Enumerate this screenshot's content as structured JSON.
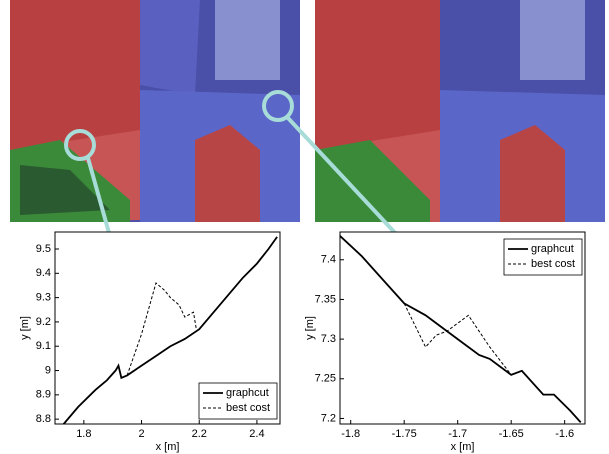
{
  "chart_data": [
    {
      "type": "line",
      "xlabel": "x [m]",
      "ylabel": "y [m]",
      "xlim": [
        1.7,
        2.48
      ],
      "ylim": [
        8.78,
        9.57
      ],
      "xticks": [
        1.8,
        2,
        2.2,
        2.4
      ],
      "yticks": [
        8.8,
        8.9,
        9,
        9.1,
        9.2,
        9.3,
        9.4,
        9.5
      ],
      "legend": "lower right",
      "series": [
        {
          "name": "graphcut",
          "color": "#000000",
          "dash": false,
          "x": [
            1.73,
            1.78,
            1.84,
            1.88,
            1.91,
            1.92,
            1.93,
            1.95,
            2.0,
            2.05,
            2.1,
            2.15,
            2.2,
            2.25,
            2.3,
            2.35,
            2.4,
            2.44,
            2.47
          ],
          "values": [
            8.78,
            8.85,
            8.92,
            8.96,
            9.0,
            9.02,
            8.97,
            8.98,
            9.02,
            9.06,
            9.1,
            9.13,
            9.17,
            9.24,
            9.31,
            9.38,
            9.44,
            9.5,
            9.55
          ]
        },
        {
          "name": "best cost",
          "color": "#000000",
          "dash": true,
          "x": [
            1.95,
            2.0,
            2.05,
            2.08,
            2.1,
            2.13,
            2.15,
            2.18,
            2.19
          ],
          "values": [
            8.98,
            9.15,
            9.36,
            9.33,
            9.3,
            9.27,
            9.22,
            9.24,
            9.17
          ]
        }
      ]
    },
    {
      "type": "line",
      "xlabel": "x [m]",
      "ylabel": "y [m]",
      "xlim": [
        -1.81,
        -1.581
      ],
      "ylim": [
        7.193,
        7.435
      ],
      "xticks": [
        -1.8,
        -1.75,
        -1.7,
        -1.65,
        -1.6
      ],
      "yticks": [
        7.2,
        7.25,
        7.3,
        7.35,
        7.4
      ],
      "legend": "upper right",
      "series": [
        {
          "name": "graphcut",
          "color": "#000000",
          "dash": false,
          "x": [
            -1.81,
            -1.79,
            -1.77,
            -1.75,
            -1.73,
            -1.72,
            -1.7,
            -1.68,
            -1.67,
            -1.65,
            -1.64,
            -1.62,
            -1.61,
            -1.595,
            -1.585
          ],
          "values": [
            7.43,
            7.405,
            7.375,
            7.345,
            7.33,
            7.32,
            7.3,
            7.28,
            7.275,
            7.255,
            7.26,
            7.23,
            7.23,
            7.21,
            7.195
          ]
        },
        {
          "name": "best cost",
          "color": "#000000",
          "dash": true,
          "x": [
            -1.75,
            -1.73,
            -1.72,
            -1.71,
            -1.69,
            -1.67,
            -1.65
          ],
          "values": [
            7.345,
            7.29,
            7.305,
            7.31,
            7.33,
            7.29,
            7.255
          ]
        }
      ]
    }
  ]
}
